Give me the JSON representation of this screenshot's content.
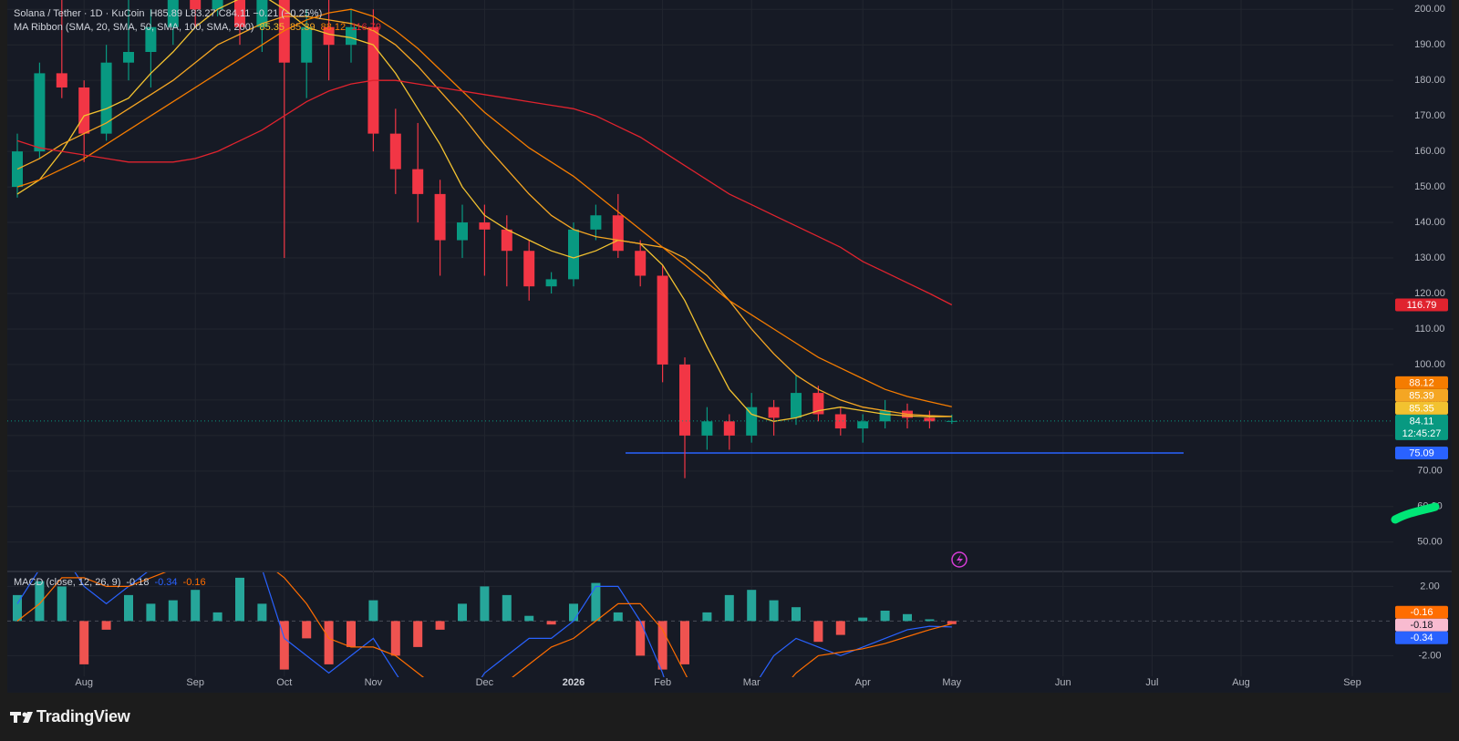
{
  "chart_data": {
    "type": "candlestick",
    "title": "Solana / Tether · 1D · KuCoin",
    "ohlc_legend": "H85.89 L83.27 C84.11 −0.21 (−0.25%)",
    "ma_title": "MA Ribbon (SMA, 20, SMA, 50, SMA, 100, SMA, 200)",
    "up_color": "#089981",
    "down_color": "#f23645",
    "categories": [
      null,
      null,
      null,
      "Aug",
      null,
      null,
      null,
      null,
      "Sep",
      null,
      null,
      null,
      "Oct",
      null,
      null,
      null,
      "Nov",
      null,
      null,
      null,
      null,
      "Dec",
      null,
      null,
      null,
      "2026",
      null,
      null,
      null,
      "Feb",
      null,
      null,
      null,
      "Mar",
      null,
      null,
      null,
      null,
      "Apr",
      null,
      null,
      null,
      "May",
      null,
      null,
      null,
      null,
      "Jun",
      null,
      null,
      null,
      "Jul",
      null,
      null,
      null,
      "Aug",
      null,
      null,
      null,
      null,
      "Sep"
    ],
    "open": [
      150,
      160,
      182,
      178,
      165,
      185,
      188,
      195,
      205,
      200,
      210,
      195,
      205,
      185,
      195,
      190,
      195,
      165,
      155,
      148,
      135,
      140,
      138,
      132,
      122,
      124,
      138,
      142,
      132,
      125,
      100,
      80,
      84,
      80,
      88,
      85,
      92,
      86,
      82,
      84,
      87,
      85,
      84,
      null,
      null,
      null,
      null,
      null,
      null,
      null,
      null,
      null,
      null,
      null,
      null,
      null,
      null,
      null,
      null,
      null,
      null
    ],
    "high": [
      165,
      185,
      206,
      180,
      190,
      208,
      200,
      210,
      212,
      215,
      212,
      210,
      215,
      200,
      205,
      200,
      200,
      172,
      168,
      152,
      145,
      145,
      142,
      135,
      126,
      140,
      145,
      148,
      135,
      128,
      102,
      88,
      86,
      92,
      90,
      97,
      94,
      88,
      86,
      90,
      89,
      87,
      85.89,
      null,
      null,
      null,
      null,
      null,
      null,
      null,
      null,
      null,
      null,
      null,
      null,
      null,
      null,
      null,
      null,
      null,
      null
    ],
    "low": [
      147,
      158,
      175,
      157,
      163,
      180,
      178,
      190,
      195,
      198,
      190,
      188,
      130,
      175,
      180,
      185,
      160,
      148,
      140,
      125,
      130,
      125,
      122,
      118,
      120,
      122,
      135,
      130,
      122,
      95,
      68,
      76,
      76,
      78,
      80,
      83,
      84,
      80,
      78,
      82,
      82,
      82,
      83.27,
      null,
      null,
      null,
      null,
      null,
      null,
      null,
      null,
      null,
      null,
      null,
      null,
      null,
      null,
      null,
      null,
      null,
      null
    ],
    "close": [
      160,
      182,
      178,
      165,
      185,
      188,
      195,
      205,
      200,
      210,
      195,
      205,
      185,
      195,
      190,
      195,
      165,
      155,
      148,
      135,
      140,
      138,
      132,
      122,
      124,
      138,
      142,
      132,
      125,
      100,
      80,
      84,
      80,
      88,
      85,
      92,
      86,
      82,
      84,
      87,
      85,
      84,
      84.11,
      null,
      null,
      null,
      null,
      null,
      null,
      null,
      null,
      null,
      null,
      null,
      null,
      null,
      null,
      null,
      null,
      null,
      null
    ],
    "ma_series": [
      {
        "color": "#f2c230",
        "values": [
          148,
          152,
          160,
          170,
          172,
          175,
          182,
          188,
          195,
          200,
          203,
          204,
          200,
          195,
          193,
          192,
          190,
          182,
          172,
          162,
          150,
          142,
          138,
          135,
          132,
          130,
          132,
          135,
          134,
          128,
          118,
          105,
          93,
          86,
          84,
          85,
          87,
          88,
          87,
          86,
          85.5,
          85.3,
          85.35,
          null,
          null,
          null,
          null,
          null,
          null,
          null,
          null,
          null,
          null,
          null,
          null,
          null,
          null,
          null,
          null,
          null,
          null
        ]
      },
      {
        "color": "#f5a623",
        "values": [
          155,
          158,
          162,
          165,
          168,
          172,
          176,
          180,
          185,
          190,
          193,
          196,
          198,
          198,
          197,
          196,
          194,
          190,
          184,
          177,
          170,
          162,
          155,
          148,
          142,
          138,
          136,
          135,
          134,
          133,
          130,
          125,
          118,
          110,
          103,
          97,
          93,
          90,
          88,
          87,
          86,
          85.6,
          85.39,
          null,
          null,
          null,
          null,
          null,
          null,
          null,
          null,
          null,
          null,
          null,
          null,
          null,
          null,
          null,
          null,
          null,
          null
        ]
      },
      {
        "color": "#f57c00",
        "values": [
          150,
          152,
          155,
          158,
          162,
          166,
          170,
          174,
          178,
          182,
          186,
          190,
          194,
          197,
          199,
          200,
          198,
          194,
          189,
          183,
          177,
          171,
          166,
          161,
          157,
          153,
          148,
          143,
          138,
          133,
          128,
          123,
          118,
          114,
          110,
          106,
          102,
          99,
          96,
          93,
          91,
          89.5,
          88.12,
          null,
          null,
          null,
          null,
          null,
          null,
          null,
          null,
          null,
          null,
          null,
          null,
          null,
          null,
          null,
          null,
          null,
          null
        ]
      },
      {
        "color": "#e0232e",
        "values": [
          163,
          161,
          160,
          159,
          158,
          157,
          157,
          157,
          158,
          160,
          163,
          166,
          170,
          174,
          177,
          179,
          180,
          180,
          179,
          178,
          177,
          176,
          175,
          174,
          173,
          172,
          170,
          167,
          164,
          160,
          156,
          152,
          148,
          145,
          142,
          139,
          136,
          133,
          129,
          126,
          123,
          120,
          116.79,
          null,
          null,
          null,
          null,
          null,
          null,
          null,
          null,
          null,
          null,
          null,
          null,
          null,
          null,
          null,
          null,
          null,
          null
        ]
      }
    ],
    "ylim": [
      42.5,
      201.6
    ],
    "yticks": [
      {
        "value": 50,
        "label": "50.00"
      },
      {
        "value": 60,
        "label": "60.00"
      },
      {
        "value": 70,
        "label": "70.00"
      },
      {
        "value": 80,
        "label": "80.00"
      },
      {
        "value": 90,
        "label": "90.00"
      },
      {
        "value": 100,
        "label": "100.00"
      },
      {
        "value": 110,
        "label": "110.00"
      },
      {
        "value": 120,
        "label": "120.00"
      },
      {
        "value": 130,
        "label": "130.00"
      },
      {
        "value": 140,
        "label": "140.00"
      },
      {
        "value": 150,
        "label": "150.00"
      },
      {
        "value": 160,
        "label": "160.00"
      },
      {
        "value": 170,
        "label": "170.00"
      },
      {
        "value": 180,
        "label": "180.00"
      },
      {
        "value": 190,
        "label": "190.00"
      },
      {
        "value": 200,
        "label": "200.00"
      }
    ],
    "grid": true,
    "level": {
      "value": 75.09,
      "color": "#2962ff"
    },
    "countdown": "12:45:27",
    "macd": {
      "title": "MACD (close, 12, 26, 9)",
      "ylim": [
        -3.19,
        2.81
      ],
      "yticks": [
        {
          "value": 2,
          "label": "2.00"
        },
        {
          "value": -2,
          "label": "-2.00"
        }
      ],
      "hist_up_color": "#26a69a",
      "hist_down_color": "#ef5350",
      "histogram": [
        1.5,
        2.3,
        2.0,
        -2.5,
        -0.5,
        1.5,
        1.0,
        1.2,
        1.8,
        0.5,
        2.5,
        1.0,
        -2.8,
        -1.0,
        -2.5,
        -1.5,
        1.2,
        -2.0,
        -1.5,
        -0.5,
        1.0,
        2.0,
        1.5,
        0.3,
        -0.2,
        1.0,
        2.2,
        0.5,
        -2.0,
        -2.8,
        -2.5,
        0.5,
        1.5,
        1.8,
        1.2,
        0.8,
        -1.2,
        -0.8,
        0.2,
        0.6,
        0.4,
        0.1,
        -0.18,
        null,
        null,
        null,
        null,
        null,
        null,
        null,
        null,
        null,
        null,
        null,
        null,
        null,
        null,
        null,
        null,
        null,
        null
      ],
      "hist_label_color": "#f8bbd0",
      "macd_line": {
        "color": "#2962ff",
        "values": [
          1,
          3,
          4,
          2,
          1,
          2,
          3,
          4,
          5,
          4,
          4,
          3,
          -1,
          -2,
          -3,
          -2,
          -1,
          -3,
          -5,
          -6,
          -5,
          -3,
          -2,
          -1,
          -1,
          0,
          2,
          2,
          0,
          -3,
          -7,
          -8,
          -6,
          -4,
          -2,
          -1,
          -1.5,
          -2,
          -1.5,
          -1,
          -0.5,
          -0.3,
          -0.34,
          null,
          null,
          null,
          null,
          null,
          null,
          null,
          null,
          null,
          null,
          null,
          null,
          null,
          null,
          null,
          null,
          null,
          null
        ]
      },
      "signal_line": {
        "color": "#ff6d00",
        "values": [
          0,
          1,
          2.5,
          2.5,
          2,
          2,
          2.5,
          3,
          3.5,
          4,
          4,
          3.5,
          2.5,
          1,
          -1,
          -1.5,
          -1.5,
          -2,
          -3,
          -4,
          -5,
          -4.5,
          -3.5,
          -2.5,
          -1.5,
          -1,
          0,
          1,
          1,
          -0.5,
          -3,
          -5.5,
          -6.5,
          -6,
          -4.5,
          -3,
          -2,
          -1.8,
          -1.6,
          -1.3,
          -0.9,
          -0.5,
          -0.16,
          null,
          null,
          null,
          null,
          null,
          null,
          null,
          null,
          null,
          null,
          null,
          null,
          null,
          null,
          null,
          null,
          null,
          null
        ]
      }
    }
  },
  "footer": {
    "brand": "TradingView"
  }
}
